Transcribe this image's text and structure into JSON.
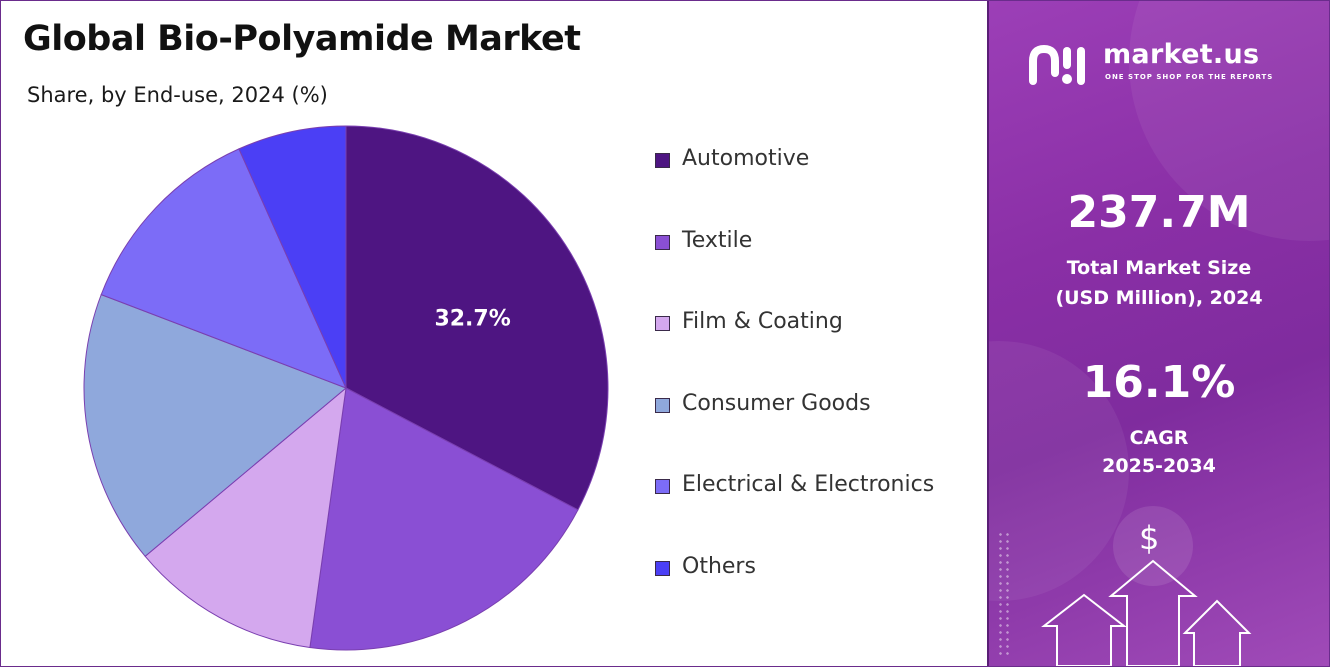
{
  "title": "Global Bio-Polyamide Market",
  "subtitle": "Share, by End-use, 2024 (%)",
  "chart_data": {
    "type": "pie",
    "title": "Global Bio-Polyamide Market",
    "subtitle": "Share, by End-use, 2024 (%)",
    "categories": [
      "Automotive",
      "Textile",
      "Film & Coating",
      "Consumer Goods",
      "Electrical & Electronics",
      "Others"
    ],
    "values": [
      32.7,
      19.5,
      11.7,
      16.9,
      12.5,
      6.7
    ],
    "colors": [
      "#4e1582",
      "#8a4fd4",
      "#d4a8ee",
      "#8fa8dc",
      "#7c6cf7",
      "#4b3ff5"
    ],
    "data_labels": [
      "32.7%",
      "",
      "",
      "",
      "",
      ""
    ],
    "legend_position": "right",
    "start_angle_deg": 0,
    "direction": "clockwise"
  },
  "brand": {
    "name": "market.us",
    "tagline": "ONE STOP SHOP FOR THE REPORTS"
  },
  "stats": {
    "market_size_value": "237.7M",
    "market_size_label_1": "Total Market Size",
    "market_size_label_2": "(USD Million), 2024",
    "cagr_value": "16.1%",
    "cagr_label_1": "CAGR",
    "cagr_label_2": "2025-2034"
  },
  "decor": {
    "currency_symbol": "$",
    "icons": [
      "dollar-icon",
      "up-arrow-icon"
    ]
  }
}
